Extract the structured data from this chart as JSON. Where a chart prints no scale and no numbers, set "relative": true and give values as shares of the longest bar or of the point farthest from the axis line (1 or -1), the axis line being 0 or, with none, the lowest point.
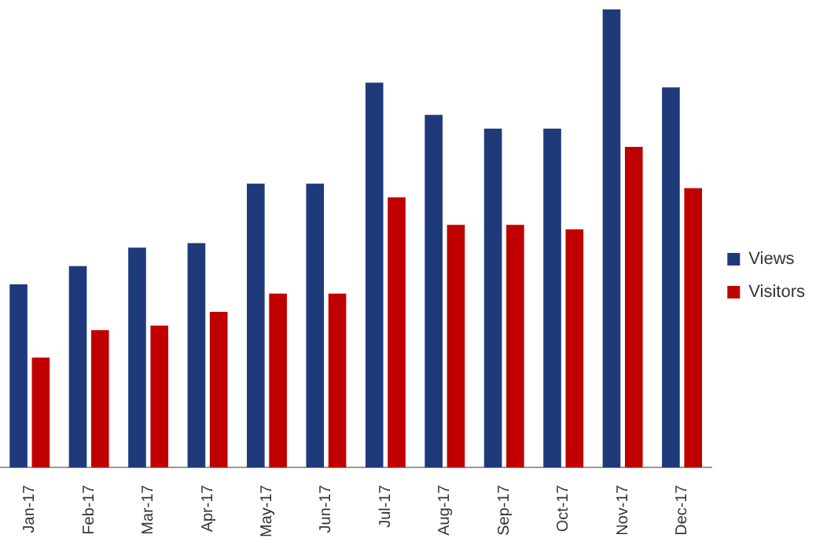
{
  "chart_data": {
    "type": "bar",
    "relative": true,
    "legend": "right",
    "categories": [
      "Jan-17",
      "Feb-17",
      "Mar-17",
      "Apr-17",
      "May-17",
      "Jun-17",
      "Jul-17",
      "Aug-17",
      "Sep-17",
      "Oct-17",
      "Nov-17",
      "Dec-17"
    ],
    "series": [
      {
        "name": "Views",
        "color": "#1f3a7a",
        "values": [
          0.4,
          0.44,
          0.48,
          0.49,
          0.62,
          0.62,
          0.84,
          0.77,
          0.74,
          0.74,
          1,
          0.83
        ]
      },
      {
        "name": "Visitors",
        "color": "#c00000",
        "values": [
          0.24,
          0.3,
          0.31,
          0.34,
          0.38,
          0.38,
          0.59,
          0.53,
          0.53,
          0.52,
          0.7,
          0.61
        ]
      }
    ]
  }
}
